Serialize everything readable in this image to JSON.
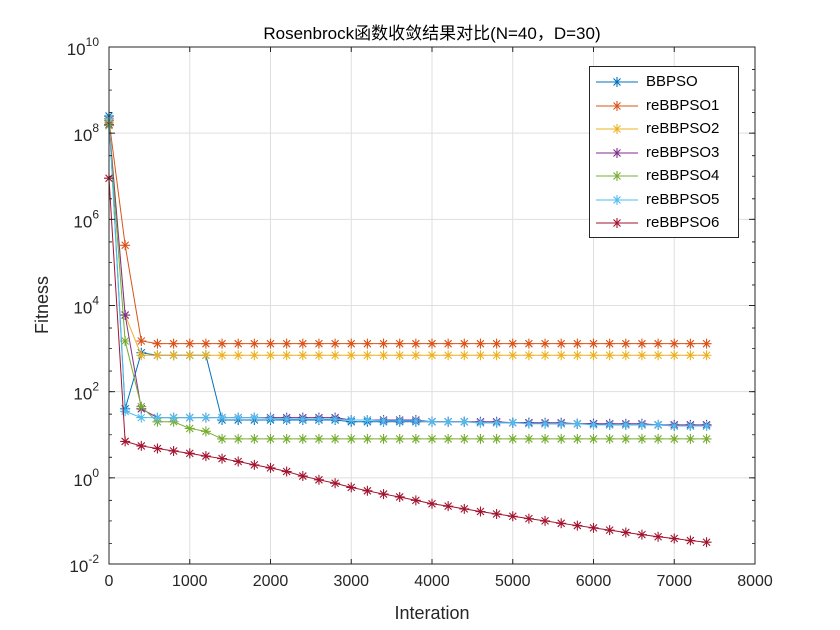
{
  "chart_data": {
    "type": "line",
    "title": "Rosenbrock函数收敛结果对比(N=40，D=30)",
    "xlabel": "Interation",
    "ylabel": "Fitness",
    "xlim": [
      0,
      8000
    ],
    "ylim_exponent": [
      -2,
      10
    ],
    "y_scale": "log",
    "grid": true,
    "legend_position": "top-right",
    "x_ticks": [
      "0",
      "1000",
      "2000",
      "3000",
      "4000",
      "5000",
      "6000",
      "7000",
      "8000"
    ],
    "y_ticks": [
      {
        "base": "10",
        "exp": "-2"
      },
      {
        "base": "10",
        "exp": "0"
      },
      {
        "base": "10",
        "exp": "2"
      },
      {
        "base": "10",
        "exp": "4"
      },
      {
        "base": "10",
        "exp": "6"
      },
      {
        "base": "10",
        "exp": "8"
      },
      {
        "base": "10",
        "exp": "10"
      }
    ],
    "x": [
      0,
      200,
      400,
      600,
      800,
      1000,
      1200,
      1400,
      1600,
      1800,
      2000,
      2200,
      2400,
      2600,
      2800,
      3000,
      3200,
      3400,
      3600,
      3800,
      4000,
      4200,
      4400,
      4600,
      4800,
      5000,
      5200,
      5400,
      5600,
      5800,
      6000,
      6200,
      6400,
      6600,
      6800,
      7000,
      7200,
      7400
    ],
    "series": [
      {
        "name": "BBPSO",
        "color": "#0072BD",
        "values": [
          250000000.0,
          40,
          800,
          700,
          700,
          700,
          700,
          22,
          22,
          22,
          22,
          22,
          22,
          22,
          22,
          20,
          20,
          20,
          20,
          20,
          20,
          20,
          20,
          19,
          19,
          19,
          19,
          18,
          18,
          18,
          18,
          17,
          17,
          17,
          17,
          16,
          16,
          16
        ]
      },
      {
        "name": "reBBPSO1",
        "color": "#D95319",
        "values": [
          200000000.0,
          250000.0,
          1500,
          1300,
          1300,
          1300,
          1300,
          1300,
          1300,
          1300,
          1300,
          1300,
          1300,
          1300,
          1300,
          1300,
          1300,
          1300,
          1300,
          1300,
          1300,
          1300,
          1300,
          1300,
          1300,
          1300,
          1300,
          1300,
          1300,
          1300,
          1300,
          1300,
          1300,
          1300,
          1300,
          1300,
          1300,
          1300
        ]
      },
      {
        "name": "reBBPSO2",
        "color": "#EDB120",
        "values": [
          180000000.0,
          6000,
          700,
          700,
          700,
          700,
          700,
          700,
          700,
          700,
          700,
          700,
          700,
          700,
          700,
          700,
          700,
          700,
          700,
          700,
          700,
          700,
          700,
          700,
          700,
          700,
          700,
          700,
          700,
          700,
          700,
          700,
          700,
          700,
          700,
          700,
          700,
          700
        ]
      },
      {
        "name": "reBBPSO3",
        "color": "#7E2F8E",
        "values": [
          160000000.0,
          6000,
          40,
          25,
          25,
          25,
          25,
          25,
          25,
          25,
          25,
          25,
          25,
          25,
          25,
          22,
          22,
          22,
          22,
          22,
          20,
          20,
          20,
          20,
          20,
          19,
          19,
          19,
          19,
          18,
          18,
          18,
          18,
          18,
          17,
          17,
          17,
          17
        ]
      },
      {
        "name": "reBBPSO4",
        "color": "#77AC30",
        "values": [
          150000000.0,
          1500,
          45,
          20,
          20,
          14,
          12,
          8,
          8,
          8,
          8,
          8,
          8,
          8,
          8,
          8,
          8,
          8,
          8,
          8,
          8,
          8,
          8,
          8,
          8,
          8,
          8,
          8,
          8,
          8,
          8,
          8,
          8,
          8,
          8,
          8,
          8,
          8
        ]
      },
      {
        "name": "reBBPSO5",
        "color": "#4DBEEE",
        "values": [
          220000000.0,
          35,
          25,
          25,
          25,
          25,
          25,
          25,
          25,
          25,
          24,
          23,
          23,
          23,
          23,
          22,
          22,
          21,
          21,
          21,
          20,
          20,
          20,
          19,
          19,
          19,
          18,
          18,
          18,
          18,
          17,
          17,
          17,
          17,
          17,
          16,
          16,
          16
        ]
      },
      {
        "name": "reBBPSO6",
        "color": "#A2142F",
        "values": [
          9000000.0,
          7,
          5.5,
          4.8,
          4.2,
          3.7,
          3.2,
          2.8,
          2.4,
          2.0,
          1.7,
          1.4,
          1.1,
          0.9,
          0.75,
          0.6,
          0.5,
          0.42,
          0.36,
          0.3,
          0.25,
          0.22,
          0.19,
          0.165,
          0.145,
          0.128,
          0.113,
          0.1,
          0.088,
          0.078,
          0.069,
          0.061,
          0.054,
          0.048,
          0.043,
          0.039,
          0.035,
          0.032
        ]
      }
    ]
  }
}
